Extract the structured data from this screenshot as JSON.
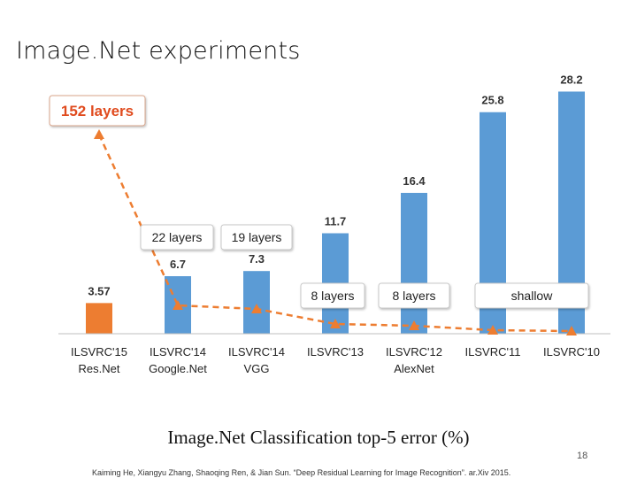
{
  "slide": {
    "title": "Image.Net experiments",
    "subtitle": "Image.Net Classification top-5 error (%)",
    "citation": "Kaiming He, Xiangyu Zhang, Shaoqing Ren, & Jian Sun. “Deep Residual Learning for Image Recognition”. ar.Xiv 2015.",
    "page_number": "18"
  },
  "chart_data": {
    "type": "bar",
    "categories": [
      [
        "ILSVRC'15",
        "Res.Net"
      ],
      [
        "ILSVRC'14",
        "Google.Net"
      ],
      [
        "ILSVRC'14",
        "VGG"
      ],
      [
        "ILSVRC'13",
        ""
      ],
      [
        "ILSVRC'12",
        "AlexNet"
      ],
      [
        "ILSVRC'11",
        ""
      ],
      [
        "ILSVRC'10",
        ""
      ]
    ],
    "values": [
      3.57,
      6.7,
      7.3,
      11.7,
      16.4,
      25.8,
      28.2
    ],
    "value_labels": [
      "3.57",
      "6.7",
      "7.3",
      "11.7",
      "16.4",
      "25.8",
      "28.2"
    ],
    "ylim": [
      0,
      30
    ],
    "colors": {
      "highlight": "#ED7D31",
      "bar": "#5B9BD5",
      "depth_line": "#ED7D31",
      "highlight_text": "#E04B1E"
    },
    "depth_labels": [
      {
        "text": "152 layers",
        "highlight": true
      },
      {
        "text": "22 layers"
      },
      {
        "text": "19 layers"
      },
      {
        "text": "8 layers"
      },
      {
        "text": "8 layers"
      },
      {
        "text": "shallow"
      }
    ]
  }
}
